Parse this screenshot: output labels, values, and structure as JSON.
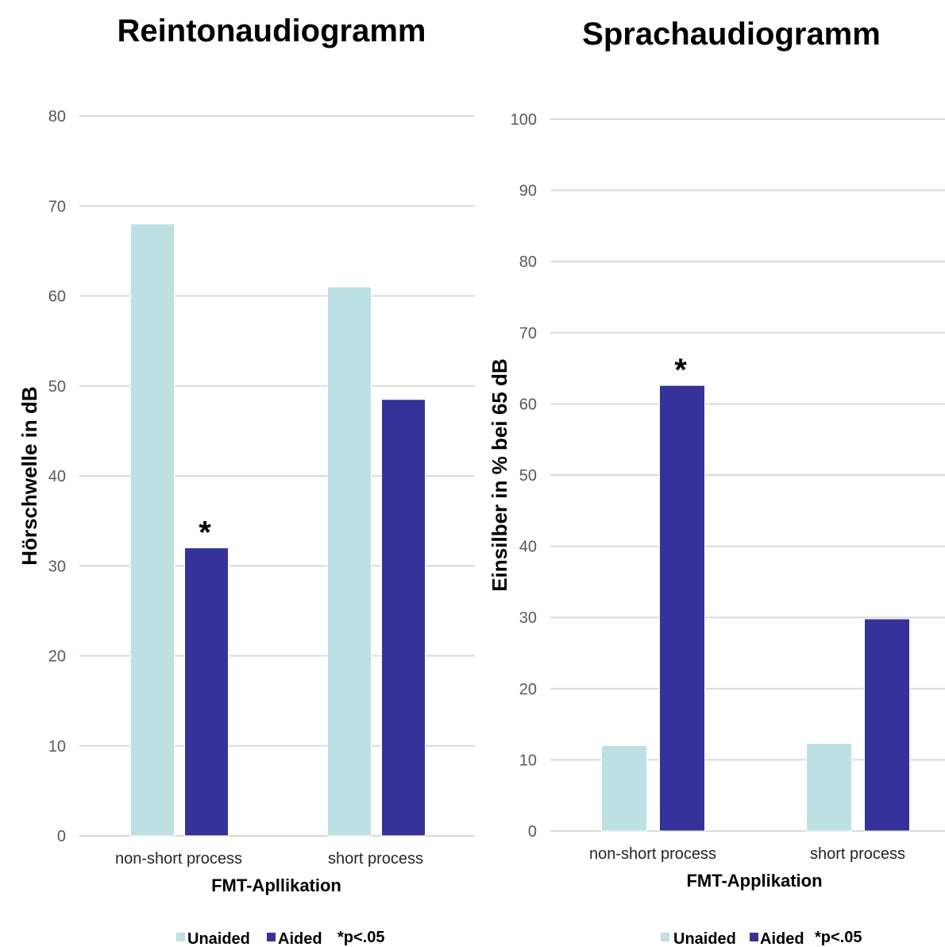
{
  "chart_data": [
    {
      "type": "bar",
      "title": "Reintonaudiogramm",
      "xlabel": "FMT-Apllikation",
      "ylabel": "Hörschwelle in dB",
      "ylim": [
        0,
        80
      ],
      "yticks": [
        0,
        10,
        20,
        30,
        40,
        50,
        60,
        70,
        80
      ],
      "grid": true,
      "legend_position": "bottom",
      "categories": [
        "non-short process",
        "short process"
      ],
      "series": [
        {
          "name": "Unaided",
          "color": "#bde0e3",
          "values": [
            68,
            61
          ]
        },
        {
          "name": "Aided",
          "color": "#35339a",
          "values": [
            32,
            48.5
          ]
        }
      ],
      "annotations": [
        {
          "text": "*",
          "series": 1,
          "category": 0
        }
      ],
      "legend_note": "*p<.05"
    },
    {
      "type": "bar",
      "title": "Sprachaudiogramm",
      "xlabel": "FMT-Applikation",
      "ylabel": "Einsilber in % bei 65 dB",
      "ylim": [
        0,
        100
      ],
      "yticks": [
        0,
        10,
        20,
        30,
        40,
        50,
        60,
        70,
        80,
        90,
        100
      ],
      "grid": true,
      "legend_position": "bottom",
      "categories": [
        "non-short process",
        "short process"
      ],
      "series": [
        {
          "name": "Unaided",
          "color": "#bde0e3",
          "values": [
            12,
            12.3
          ]
        },
        {
          "name": "Aided",
          "color": "#35339a",
          "values": [
            62.6,
            29.8
          ]
        }
      ],
      "annotations": [
        {
          "text": "*",
          "series": 1,
          "category": 0
        }
      ],
      "legend_note": "*p<.05"
    }
  ]
}
